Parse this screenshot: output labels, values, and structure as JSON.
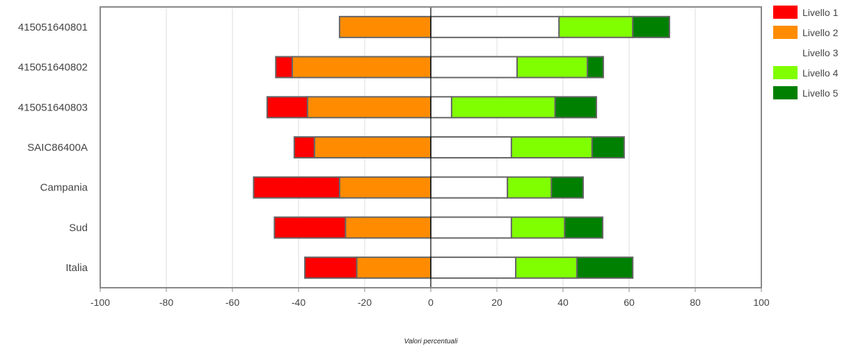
{
  "chart_data": {
    "type": "bar",
    "orientation": "horizontal",
    "stacked": true,
    "diverging": true,
    "xlabel": "Valori percentuali",
    "xlim": [
      -100,
      100
    ],
    "xticks": [
      -100,
      -80,
      -60,
      -40,
      -20,
      0,
      20,
      40,
      60,
      80,
      100
    ],
    "grid": true,
    "legend_position": "top-right",
    "categories": [
      "415051640801",
      "415051640802",
      "415051640803",
      "SAIC86400A",
      "Campania",
      "Sud",
      "Italia"
    ],
    "negative_series": [
      {
        "name": "Livello 2",
        "color": "#ff8c00",
        "values": [
          27.6,
          41.9,
          37.3,
          35.2,
          27.6,
          25.8,
          22.4
        ]
      },
      {
        "name": "Livello 1",
        "color": "#ff0000",
        "values": [
          0,
          5.0,
          12.2,
          6.1,
          26.0,
          21.5,
          15.7
        ]
      }
    ],
    "positive_series": [
      {
        "name": "Livello 3",
        "color": "#ffffff",
        "values": [
          38.8,
          26.1,
          6.3,
          24.4,
          23.2,
          24.4,
          25.7
        ]
      },
      {
        "name": "Livello 4",
        "color": "#80ff00",
        "values": [
          22.3,
          21.3,
          31.3,
          24.4,
          13.3,
          16.1,
          18.5
        ]
      },
      {
        "name": "Livello 5",
        "color": "#008000",
        "values": [
          11.1,
          4.8,
          12.5,
          9.7,
          9.6,
          11.5,
          16.9
        ]
      }
    ],
    "legend": [
      {
        "name": "Livello 1",
        "color": "#ff0000"
      },
      {
        "name": "Livello 2",
        "color": "#ff8c00"
      },
      {
        "name": "Livello 3",
        "color": "#ffffff"
      },
      {
        "name": "Livello 4",
        "color": "#80ff00"
      },
      {
        "name": "Livello 5",
        "color": "#008000"
      }
    ]
  }
}
